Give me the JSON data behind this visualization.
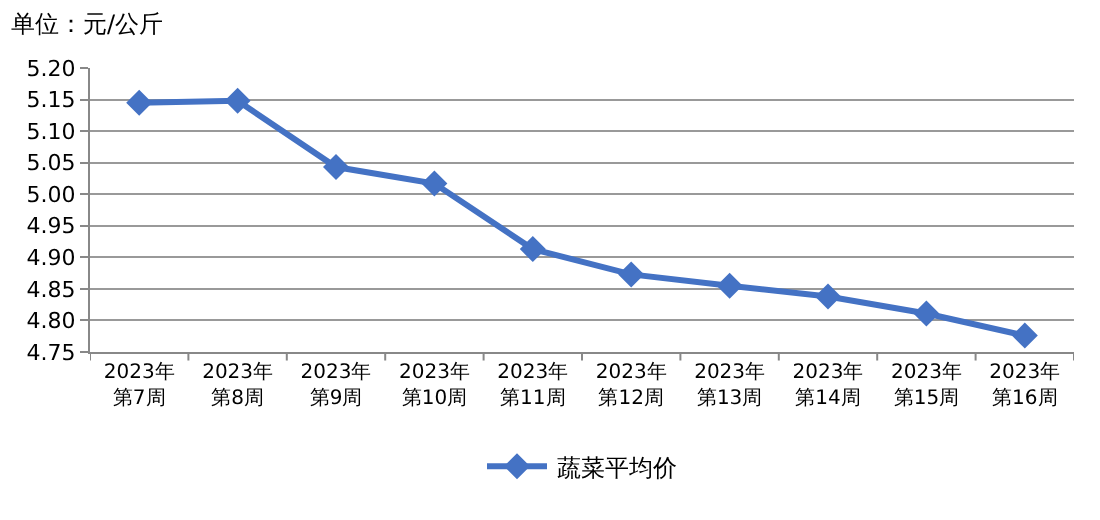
{
  "chart_data": {
    "type": "line",
    "title": "单位：元/公斤",
    "categories": [
      "2023年第7周",
      "2023年第8周",
      "2023年第9周",
      "2023年第10周",
      "2023年第11周",
      "2023年第12周",
      "2023年第13周",
      "2023年第14周",
      "2023年第15周",
      "2023年第16周"
    ],
    "series": [
      {
        "name": "蔬菜平均价",
        "color": "#4472c4",
        "values": [
          5.145,
          5.148,
          5.043,
          5.017,
          4.913,
          4.873,
          4.855,
          4.838,
          4.811,
          4.776
        ]
      }
    ],
    "ylim": [
      4.75,
      5.2
    ],
    "yticks": [
      4.75,
      {
        "value": 4.8,
        "label": "4.80"
      },
      4.85,
      {
        "value": 4.9,
        "label": "4.90"
      },
      4.95,
      {
        "value": 5.0,
        "label": "5.00"
      },
      5.05,
      {
        "value": 5.1,
        "label": "5.10"
      },
      5.15,
      {
        "value": 5.2,
        "label": "5.20"
      }
    ],
    "grid": "y",
    "legend": "bottom",
    "marker": "diamond",
    "line_style": "solid"
  }
}
